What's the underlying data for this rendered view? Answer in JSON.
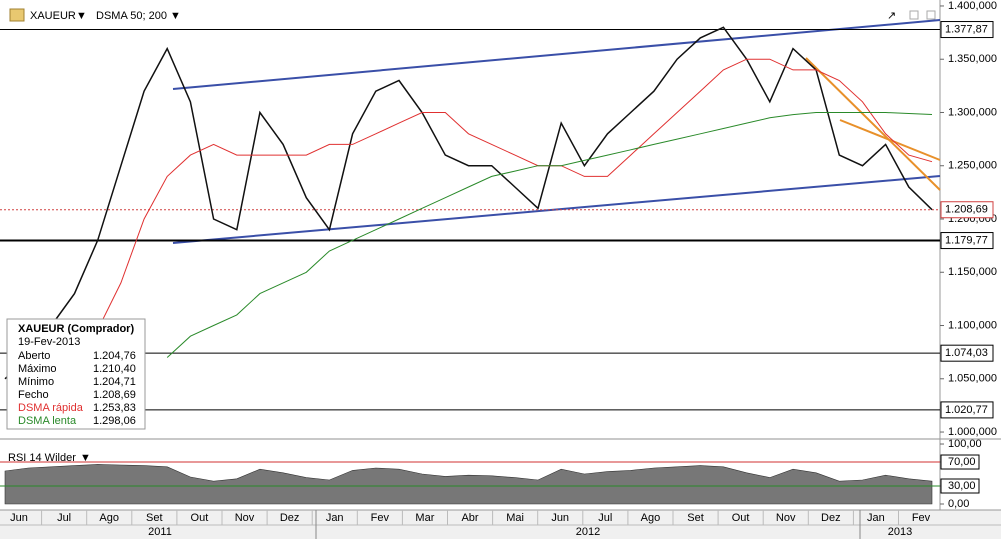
{
  "header": {
    "symbol": "XAUEUR",
    "indicator": "DSMA 50; 200"
  },
  "infobox": {
    "title": "XAUEUR (Comprador)",
    "date": "19-Fev-2013",
    "rows": [
      [
        "Aberto",
        "1.204,76"
      ],
      [
        "Máximo",
        "1.210,40"
      ],
      [
        "Mínimo",
        "1.204,71"
      ],
      [
        "Fecho",
        "1.208,69"
      ]
    ],
    "ma_values": [
      "1.253,83",
      "1.298,06"
    ]
  },
  "x_axis": {
    "months": [
      "Jun",
      "Jul",
      "Ago",
      "Set",
      "Out",
      "Nov",
      "Dez",
      "Jan",
      "Fev",
      "Mar",
      "Abr",
      "Mai",
      "Jun",
      "Jul",
      "Ago",
      "Set",
      "Out",
      "Nov",
      "Dez",
      "Jan",
      "Fev"
    ],
    "years": [
      "2011",
      "2012",
      "2013"
    ]
  },
  "chart_data": [
    {
      "type": "line",
      "title": "XAUEUR",
      "ylim": [
        0.9944,
        1.4056
      ],
      "yticks": [
        {
          "value": 1.4,
          "label": "1.400,000"
        },
        {
          "value": 1.35,
          "label": "1.350,000"
        },
        {
          "value": 1.3,
          "label": "1.300,000"
        },
        {
          "value": 1.25,
          "label": "1.250,000"
        },
        {
          "value": 1.2,
          "label": "1.200,000"
        },
        {
          "value": 1.15,
          "label": "1.150,000"
        },
        {
          "value": 1.1,
          "label": "1.100,000"
        },
        {
          "value": 1.05,
          "label": "1.050,000"
        },
        {
          "value": 1.0,
          "label": "1.000,000"
        }
      ],
      "levels": [
        {
          "value": 1.37787,
          "label": "1.377,87"
        },
        {
          "value": 1.17977,
          "label": "1.179,77"
        },
        {
          "value": 1.07403,
          "label": "1.074,03"
        },
        {
          "value": 1.02077,
          "label": "1.020,77"
        }
      ],
      "last_price": {
        "value": 1.20869,
        "label": "1.208,69"
      },
      "series": [
        {
          "name": "XAUEUR",
          "color": "#111111",
          "values": [
            1.05,
            1.07,
            1.1,
            1.13,
            1.18,
            1.25,
            1.32,
            1.36,
            1.31,
            1.2,
            1.19,
            1.3,
            1.27,
            1.22,
            1.19,
            1.28,
            1.32,
            1.33,
            1.3,
            1.26,
            1.25,
            1.25,
            1.23,
            1.21,
            1.29,
            1.25,
            1.28,
            1.3,
            1.32,
            1.35,
            1.37,
            1.38,
            1.35,
            1.31,
            1.36,
            1.34,
            1.26,
            1.25,
            1.27,
            1.23,
            1.20869
          ]
        },
        {
          "name": "DSMA rápida",
          "color": "#e03030",
          "values": [
            null,
            null,
            null,
            null,
            1.096,
            1.14,
            1.2,
            1.24,
            1.26,
            1.27,
            1.26,
            1.26,
            1.26,
            1.26,
            1.27,
            1.27,
            1.28,
            1.29,
            1.3,
            1.3,
            1.28,
            1.27,
            1.26,
            1.25,
            1.25,
            1.24,
            1.24,
            1.26,
            1.28,
            1.3,
            1.32,
            1.34,
            1.35,
            1.35,
            1.34,
            1.34,
            1.33,
            1.31,
            1.28,
            1.26,
            1.25383
          ]
        },
        {
          "name": "DSMA lenta",
          "color": "#2a8a2a",
          "values": [
            null,
            null,
            null,
            null,
            null,
            null,
            null,
            1.07,
            1.09,
            1.1,
            1.11,
            1.13,
            1.14,
            1.15,
            1.17,
            1.18,
            1.19,
            1.2,
            1.21,
            1.22,
            1.23,
            1.24,
            1.245,
            1.25,
            1.25,
            1.255,
            1.26,
            1.265,
            1.27,
            1.275,
            1.28,
            1.285,
            1.29,
            1.295,
            1.298,
            1.3,
            1.3,
            1.3,
            1.3,
            1.299,
            1.29806
          ]
        }
      ]
    },
    {
      "type": "area",
      "title": "RSI 14 Wilder",
      "color": "#777777",
      "ylim": [
        -10,
        106.7
      ],
      "yticks": [
        {
          "value": 100,
          "label": "100,00"
        },
        {
          "value": 70,
          "label": "70,00"
        },
        {
          "value": 30,
          "label": "30,00"
        },
        {
          "value": 0,
          "label": "0,00"
        }
      ],
      "values": [
        55,
        60,
        62,
        64,
        66,
        65,
        64,
        62,
        45,
        38,
        42,
        58,
        52,
        44,
        40,
        56,
        60,
        58,
        50,
        46,
        48,
        47,
        44,
        40,
        58,
        50,
        54,
        56,
        60,
        62,
        64,
        62,
        52,
        44,
        58,
        52,
        38,
        40,
        48,
        42,
        38
      ]
    }
  ]
}
